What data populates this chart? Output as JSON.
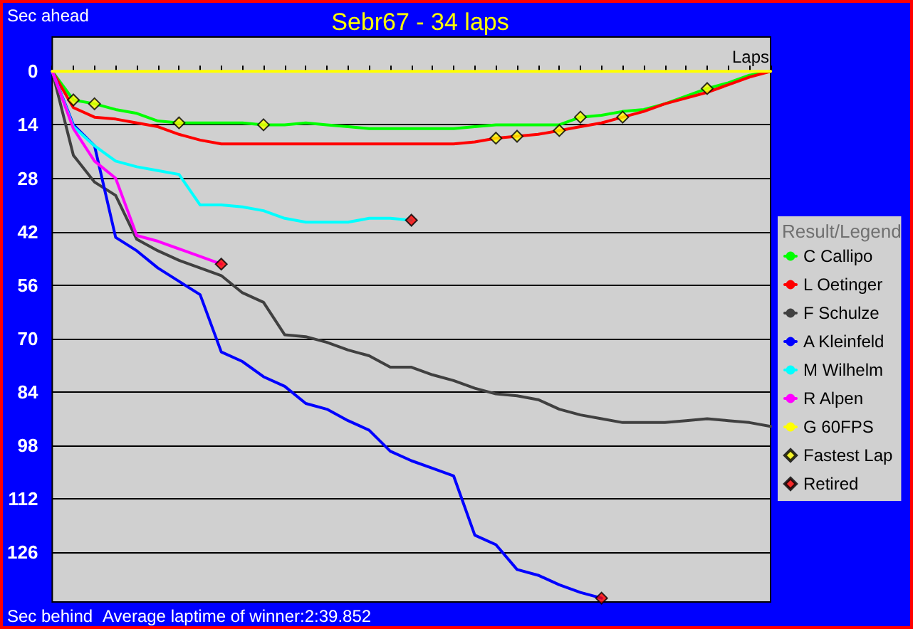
{
  "chart_data": {
    "type": "line",
    "title": "Sebr67 - 34 laps",
    "xlabel": "Laps",
    "ylabel": "Sec ahead",
    "legend_title": "Result/Legend",
    "annotations": [
      "Sec behind",
      "Average laptime of winner:2:39.852"
    ],
    "categories": [
      null,
      null,
      null,
      null,
      null,
      null,
      null,
      null,
      null,
      null,
      null,
      null,
      null,
      null,
      null,
      null,
      null,
      null,
      null,
      null,
      null,
      null,
      null,
      null,
      null,
      null,
      null,
      null,
      null,
      null,
      null,
      null,
      null,
      null,
      null
    ],
    "ylim": [
      139,
      -9
    ],
    "yticks": [
      0,
      14,
      28,
      42,
      56,
      70,
      84,
      98,
      112,
      126
    ],
    "grid": "y",
    "legend": "right",
    "tick_labels": "y",
    "line_style": "solid",
    "marker": "none",
    "series": [
      {
        "name": "C Callipo",
        "color": "#00ff00",
        "values": [
          0,
          7.5,
          8.5,
          10,
          11,
          13,
          13.5,
          13.5,
          13.5,
          13.5,
          14,
          14,
          13.5,
          14,
          14.5,
          15,
          15,
          15,
          15,
          15,
          14.5,
          14,
          14,
          14,
          14,
          12,
          11.5,
          10.5,
          10,
          8.5,
          6.5,
          4.5,
          3,
          1,
          0
        ]
      },
      {
        "name": "L Oetinger",
        "color": "#ff0000",
        "values": [
          0,
          9.5,
          12,
          12.5,
          13.5,
          14.5,
          16.5,
          18,
          19,
          19,
          19,
          19,
          19,
          19,
          19,
          19,
          19,
          19,
          19,
          19,
          18.5,
          17.5,
          17,
          16.5,
          15.5,
          14.5,
          13.5,
          12,
          10.5,
          8.5,
          7,
          5.5,
          3.5,
          1.5,
          0
        ]
      },
      {
        "name": "F Schulze",
        "color": "#404040",
        "values": [
          0,
          22,
          29,
          32.5,
          44,
          47,
          49.5,
          51.5,
          53.5,
          58,
          60.5,
          69,
          69.5,
          71,
          73,
          74.5,
          77.5,
          77.5,
          79.5,
          81,
          83,
          84.5,
          85,
          86,
          88.5,
          90,
          91,
          92,
          92,
          92,
          91.5,
          91,
          91.5,
          92,
          93
        ]
      },
      {
        "name": "A Kleinfeld",
        "color": "#0000ff",
        "values": [
          0,
          14,
          19.5,
          43.5,
          47,
          51.5,
          55,
          58.5,
          73.5,
          76,
          80,
          82.5,
          87,
          88.5,
          91.5,
          94,
          99.5,
          102,
          104,
          106,
          121.5,
          124,
          130.5,
          132,
          134.5,
          136.5,
          138,
          null,
          null,
          null,
          null,
          null,
          null,
          null,
          null
        ]
      },
      {
        "name": "M Wilhelm",
        "color": "#00ffff",
        "values": [
          0,
          14.5,
          19.5,
          23.5,
          25,
          26,
          27,
          35,
          35,
          35.5,
          36.5,
          38.5,
          39.5,
          39.5,
          39.5,
          38.5,
          38.5,
          39,
          null,
          null,
          null,
          null,
          null,
          null,
          null,
          null,
          null,
          null,
          null,
          null,
          null,
          null,
          null,
          null,
          null
        ]
      },
      {
        "name": "R Alpen",
        "color": "#ff00ff",
        "values": [
          0,
          15,
          23.5,
          28,
          43,
          44.5,
          46.5,
          48.5,
          50.5,
          null,
          null,
          null,
          null,
          null,
          null,
          null,
          null,
          null,
          null,
          null,
          null,
          null,
          null,
          null,
          null,
          null,
          null,
          null,
          null,
          null,
          null,
          null,
          null,
          null,
          null
        ]
      },
      {
        "name": "G 60FPS",
        "color": "#ffff00",
        "values": [
          0,
          0,
          0,
          0,
          0,
          0,
          0,
          0,
          0,
          0,
          0,
          0,
          0,
          0,
          0,
          0,
          0,
          0,
          0,
          0,
          0,
          0,
          0,
          0,
          0,
          0,
          0,
          0,
          0,
          0,
          0,
          0,
          0,
          0,
          0
        ]
      },
      {
        "name": "Fastest Lap",
        "type": "scatter",
        "marker": "diamond",
        "color": "#ffff00",
        "values": [
          null,
          7.5,
          8.5,
          null,
          null,
          null,
          13.5,
          null,
          null,
          null,
          14,
          null,
          null,
          null,
          null,
          null,
          null,
          null,
          null,
          null,
          null,
          17.5,
          17,
          null,
          15.5,
          12,
          null,
          12,
          null,
          null,
          null,
          4.5,
          null,
          null,
          null
        ]
      },
      {
        "name": "Retired",
        "type": "scatter",
        "marker": "diamond",
        "color": "#ff0000",
        "values": [
          null,
          null,
          null,
          null,
          null,
          null,
          null,
          null,
          50.5,
          null,
          null,
          null,
          null,
          null,
          null,
          null,
          null,
          39,
          null,
          null,
          null,
          null,
          null,
          null,
          null,
          null,
          138,
          null,
          null,
          null,
          null,
          null,
          null,
          null,
          null
        ]
      }
    ]
  }
}
